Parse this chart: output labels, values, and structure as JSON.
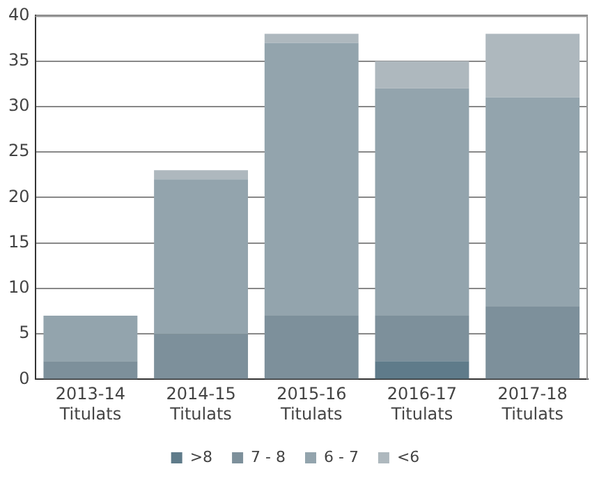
{
  "chart_data": {
    "type": "bar",
    "stacked": true,
    "categories": [
      "2013-14\nTitulats",
      "2014-15\nTitulats",
      "2015-16\nTitulats",
      "2016-17\nTitulats",
      "2017-18\nTitulats"
    ],
    "series": [
      {
        "name": ">8",
        "color": "#5f7b8a",
        "values": [
          0,
          0,
          0,
          2,
          0
        ]
      },
      {
        "name": "7 - 8",
        "color": "#7d909b",
        "values": [
          2,
          5,
          7,
          5,
          8
        ]
      },
      {
        "name": "6 - 7",
        "color": "#93a4ad",
        "values": [
          5,
          17,
          30,
          25,
          23
        ]
      },
      {
        "name": "<6",
        "color": "#aeb8be",
        "values": [
          0,
          1,
          1,
          3,
          7
        ]
      }
    ],
    "ylim": [
      0,
      40
    ],
    "yticks": [
      0,
      5,
      10,
      15,
      20,
      25,
      30,
      35,
      40
    ],
    "grid": "y",
    "legend": "bottom"
  }
}
